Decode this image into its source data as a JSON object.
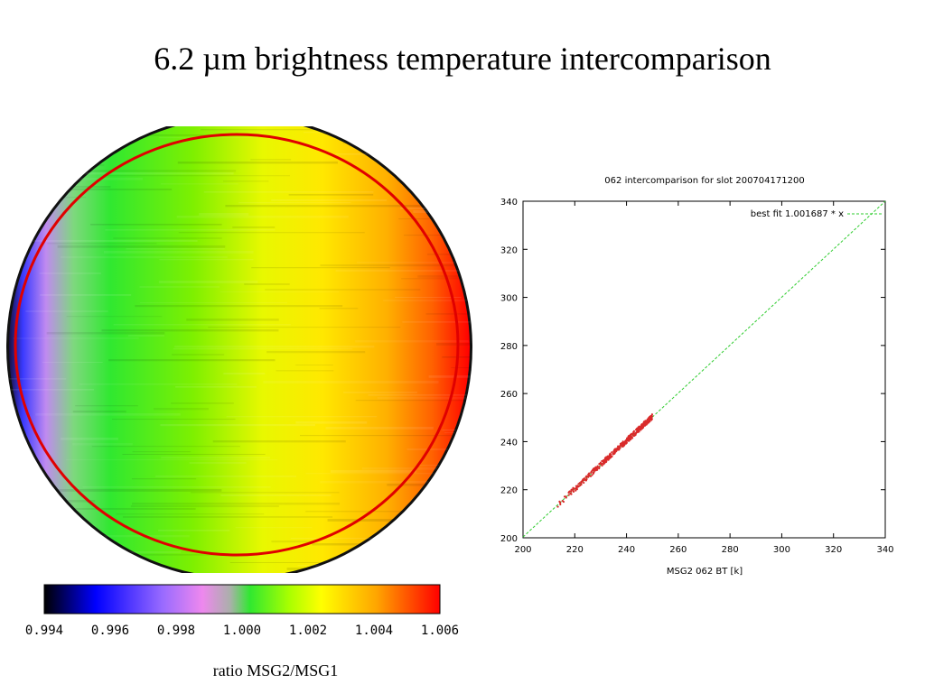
{
  "slide": {
    "title": "6.2 µm brightness temperature intercomparison"
  },
  "chart_data": [
    {
      "type": "heatmap",
      "title": "",
      "colorbar": {
        "caption": "ratio MSG2/MSG1",
        "ticks": [
          "0.994",
          "0.996",
          "0.998",
          "1.000",
          "1.002",
          "1.004",
          "1.006"
        ],
        "range": [
          0.994,
          1.006
        ],
        "colors": [
          "#000000",
          "#0000ff",
          "#9a6bff",
          "#ee88ee",
          "#30e830",
          "#aaff00",
          "#ffff00",
          "#ffa500",
          "#ff0000"
        ]
      },
      "circle_color": "#e00000"
    },
    {
      "type": "scatter",
      "title": "062 intercomparison for slot 200704171200",
      "xlabel": "MSG2 062 BT [k]",
      "ylabel": "",
      "xlim": [
        200,
        340
      ],
      "ylim": [
        200,
        340
      ],
      "xticks": [
        "200",
        "220",
        "240",
        "260",
        "280",
        "300",
        "320",
        "340"
      ],
      "yticks": [
        "200",
        "220",
        "240",
        "260",
        "280",
        "300",
        "320",
        "340"
      ],
      "legend": {
        "label": "best fit 1.001687 * x",
        "position": "top-right"
      },
      "fit": {
        "slope": 1.001687,
        "color": "#2ecc2e"
      },
      "points_color": "#d92b2b",
      "points_range": [
        212,
        250
      ]
    }
  ]
}
